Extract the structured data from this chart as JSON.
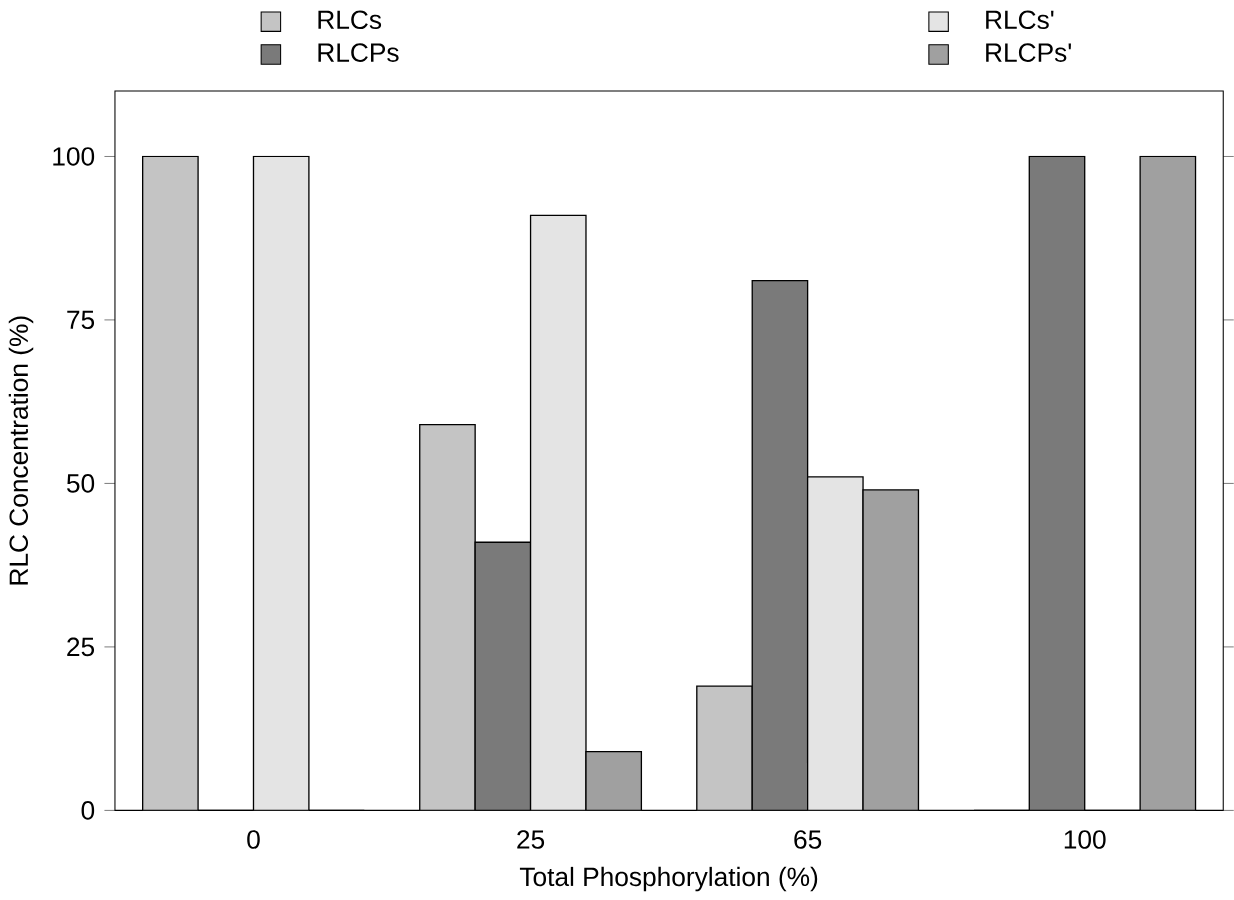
{
  "chart_data": {
    "type": "bar",
    "xlabel": "Total Phosphorylation  (%)",
    "ylabel": "RLC Concentration  (%)",
    "categories": [
      "0",
      "25",
      "65",
      "100"
    ],
    "series": [
      {
        "name": "RLCs",
        "color": "#c4c4c4",
        "values": [
          100,
          59,
          19,
          0
        ]
      },
      {
        "name": "RLCPs",
        "color": "#7a7a7a",
        "values": [
          0,
          41,
          81,
          100
        ]
      },
      {
        "name": "RLCs'",
        "color": "#e4e4e4",
        "values": [
          100,
          91,
          51,
          0
        ]
      },
      {
        "name": "RLCPs'",
        "color": "#a0a0a0",
        "values": [
          0,
          9,
          49,
          100
        ]
      }
    ],
    "ylim": [
      0,
      110
    ],
    "yticks": [
      0,
      25,
      50,
      75,
      100
    ],
    "grid": false,
    "legend": "top"
  }
}
